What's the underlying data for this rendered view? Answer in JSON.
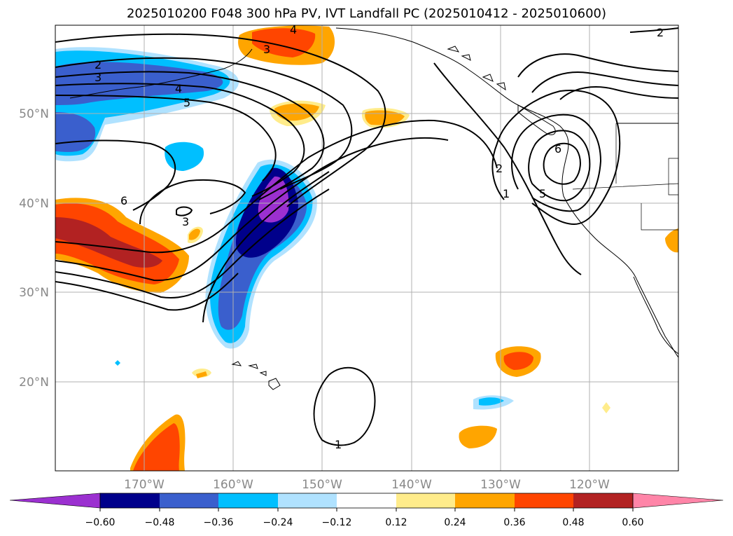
{
  "title": "2025010200 F048 300 hPa PV, IVT Landfall PC (2025010412 - 2025010600)",
  "lon_ticks": [
    "170°W",
    "160°W",
    "150°W",
    "140°W",
    "130°W",
    "120°W"
  ],
  "lat_ticks": [
    "50°N",
    "40°N",
    "30°N",
    "20°N"
  ],
  "colorbar": {
    "colors": [
      "#9b30d0",
      "#00008b",
      "#3a5fcd",
      "#00bfff",
      "#b0e2ff",
      "#ffffff",
      "#ffec8b",
      "#ffa500",
      "#ff4500",
      "#b22222",
      "#ff85a8"
    ],
    "labels": [
      "−0.60",
      "−0.48",
      "−0.36",
      "−0.24",
      "−0.12",
      "0.12",
      "0.24",
      "0.36",
      "0.48",
      "0.60"
    ]
  },
  "contour_labels": [
    "2",
    "3",
    "4",
    "5",
    "6",
    "3",
    "2",
    "1",
    "5",
    "6",
    "1",
    "4",
    "3",
    "2"
  ]
}
